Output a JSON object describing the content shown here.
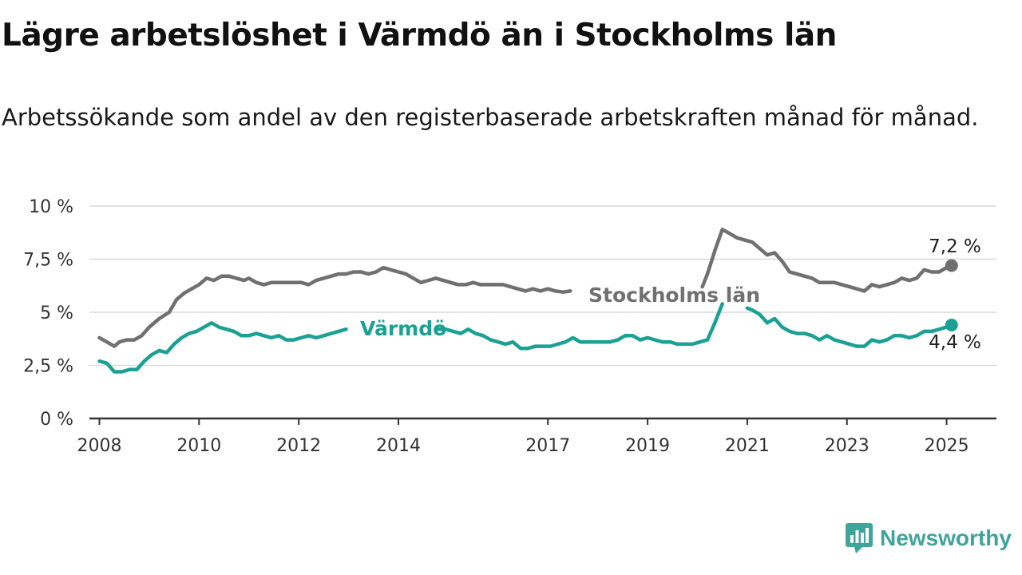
{
  "brand": {
    "name": "Newsworthy",
    "icon": "newsworthy-logo-icon"
  },
  "colors": {
    "stockholm": "#707070",
    "varmdo": "#1ba193",
    "grid": "#d9d9d9",
    "axis": "#333333",
    "brand": "#3fa49a"
  },
  "chart_data": {
    "type": "line",
    "title": "Lägre arbetslöshet i Värmdö än i Stockholms län",
    "subtitle": "Arbetssökande som andel av den registerbaserade arbetskraften månad för månad.",
    "ylim": [
      0,
      10
    ],
    "xlim": [
      2007.8,
      2026.0
    ],
    "y_ticks": [
      {
        "value": 0,
        "label": "0 %"
      },
      {
        "value": 2.5,
        "label": "2,5 %"
      },
      {
        "value": 5,
        "label": "5 %"
      },
      {
        "value": 7.5,
        "label": "7,5 %"
      },
      {
        "value": 10,
        "label": "10 %"
      }
    ],
    "x_ticks": [
      {
        "value": 2008,
        "label": "2008"
      },
      {
        "value": 2010,
        "label": "2010"
      },
      {
        "value": 2012,
        "label": "2012"
      },
      {
        "value": 2014,
        "label": "2014"
      },
      {
        "value": 2017,
        "label": "2017"
      },
      {
        "value": 2019,
        "label": "2019"
      },
      {
        "value": 2021,
        "label": "2021"
      },
      {
        "value": 2023,
        "label": "2023"
      },
      {
        "value": 2025,
        "label": "2025"
      }
    ],
    "grid": true,
    "series": [
      {
        "name": "Stockholms län",
        "end_label": "7,2 %",
        "points": [
          [
            2008.0,
            3.8
          ],
          [
            2008.15,
            3.6
          ],
          [
            2008.3,
            3.4
          ],
          [
            2008.4,
            3.6
          ],
          [
            2008.55,
            3.7
          ],
          [
            2008.7,
            3.7
          ],
          [
            2008.85,
            3.9
          ],
          [
            2009.0,
            4.3
          ],
          [
            2009.2,
            4.7
          ],
          [
            2009.4,
            5.0
          ],
          [
            2009.55,
            5.6
          ],
          [
            2009.7,
            5.9
          ],
          [
            2009.85,
            6.1
          ],
          [
            2010.0,
            6.3
          ],
          [
            2010.15,
            6.6
          ],
          [
            2010.3,
            6.5
          ],
          [
            2010.45,
            6.7
          ],
          [
            2010.6,
            6.7
          ],
          [
            2010.75,
            6.6
          ],
          [
            2010.9,
            6.5
          ],
          [
            2011.0,
            6.6
          ],
          [
            2011.15,
            6.4
          ],
          [
            2011.3,
            6.3
          ],
          [
            2011.45,
            6.4
          ],
          [
            2011.6,
            6.4
          ],
          [
            2011.75,
            6.4
          ],
          [
            2011.9,
            6.4
          ],
          [
            2012.05,
            6.4
          ],
          [
            2012.2,
            6.3
          ],
          [
            2012.35,
            6.5
          ],
          [
            2012.5,
            6.6
          ],
          [
            2012.65,
            6.7
          ],
          [
            2012.8,
            6.8
          ],
          [
            2012.95,
            6.8
          ],
          [
            2013.1,
            6.9
          ],
          [
            2013.25,
            6.9
          ],
          [
            2013.4,
            6.8
          ],
          [
            2013.55,
            6.9
          ],
          [
            2013.7,
            7.1
          ],
          [
            2013.85,
            7.0
          ],
          [
            2014.0,
            6.9
          ],
          [
            2014.15,
            6.8
          ],
          [
            2014.3,
            6.6
          ],
          [
            2014.45,
            6.4
          ],
          [
            2014.6,
            6.5
          ],
          [
            2014.75,
            6.6
          ],
          [
            2014.9,
            6.5
          ],
          [
            2015.05,
            6.4
          ],
          [
            2015.2,
            6.3
          ],
          [
            2015.35,
            6.3
          ],
          [
            2015.5,
            6.4
          ],
          [
            2015.65,
            6.3
          ],
          [
            2015.8,
            6.3
          ],
          [
            2015.95,
            6.3
          ],
          [
            2016.1,
            6.3
          ],
          [
            2016.25,
            6.2
          ],
          [
            2016.4,
            6.1
          ],
          [
            2016.55,
            6.0
          ],
          [
            2016.7,
            6.1
          ],
          [
            2016.85,
            6.0
          ],
          [
            2017.0,
            6.1
          ],
          [
            2017.15,
            6.0
          ],
          [
            2017.3,
            5.95
          ],
          [
            2017.45,
            6.0
          ],
          null,
          [
            2020.1,
            6.2
          ],
          [
            2020.2,
            6.8
          ],
          [
            2020.35,
            7.9
          ],
          [
            2020.5,
            8.9
          ],
          [
            2020.65,
            8.7
          ],
          [
            2020.8,
            8.5
          ],
          [
            2020.95,
            8.4
          ],
          [
            2021.1,
            8.3
          ],
          [
            2021.25,
            8.0
          ],
          [
            2021.4,
            7.7
          ],
          [
            2021.55,
            7.8
          ],
          [
            2021.7,
            7.4
          ],
          [
            2021.85,
            6.9
          ],
          [
            2022.0,
            6.8
          ],
          [
            2022.15,
            6.7
          ],
          [
            2022.3,
            6.6
          ],
          [
            2022.45,
            6.4
          ],
          [
            2022.6,
            6.4
          ],
          [
            2022.75,
            6.4
          ],
          [
            2022.9,
            6.3
          ],
          [
            2023.05,
            6.2
          ],
          [
            2023.2,
            6.1
          ],
          [
            2023.35,
            6.0
          ],
          [
            2023.5,
            6.3
          ],
          [
            2023.65,
            6.2
          ],
          [
            2023.8,
            6.3
          ],
          [
            2023.95,
            6.4
          ],
          [
            2024.1,
            6.6
          ],
          [
            2024.25,
            6.5
          ],
          [
            2024.4,
            6.6
          ],
          [
            2024.55,
            7.0
          ],
          [
            2024.7,
            6.9
          ],
          [
            2024.85,
            6.9
          ],
          [
            2025.0,
            7.1
          ],
          [
            2025.1,
            7.2
          ]
        ]
      },
      {
        "name": "Värmdö",
        "end_label": "4,4 %",
        "points": [
          [
            2008.0,
            2.7
          ],
          [
            2008.15,
            2.6
          ],
          [
            2008.3,
            2.2
          ],
          [
            2008.45,
            2.2
          ],
          [
            2008.6,
            2.3
          ],
          [
            2008.75,
            2.3
          ],
          [
            2008.9,
            2.7
          ],
          [
            2009.05,
            3.0
          ],
          [
            2009.2,
            3.2
          ],
          [
            2009.35,
            3.1
          ],
          [
            2009.5,
            3.5
          ],
          [
            2009.65,
            3.8
          ],
          [
            2009.8,
            4.0
          ],
          [
            2009.95,
            4.1
          ],
          [
            2010.1,
            4.3
          ],
          [
            2010.25,
            4.5
          ],
          [
            2010.4,
            4.3
          ],
          [
            2010.55,
            4.2
          ],
          [
            2010.7,
            4.1
          ],
          [
            2010.85,
            3.9
          ],
          [
            2011.0,
            3.9
          ],
          [
            2011.15,
            4.0
          ],
          [
            2011.3,
            3.9
          ],
          [
            2011.45,
            3.8
          ],
          [
            2011.6,
            3.9
          ],
          [
            2011.75,
            3.7
          ],
          [
            2011.9,
            3.7
          ],
          [
            2012.05,
            3.8
          ],
          [
            2012.2,
            3.9
          ],
          [
            2012.35,
            3.8
          ],
          [
            2012.5,
            3.9
          ],
          [
            2012.65,
            4.0
          ],
          [
            2012.8,
            4.1
          ],
          [
            2012.95,
            4.2
          ],
          null,
          [
            2014.8,
            4.2
          ],
          [
            2014.95,
            4.2
          ],
          [
            2015.1,
            4.1
          ],
          [
            2015.25,
            4.0
          ],
          [
            2015.4,
            4.2
          ],
          [
            2015.55,
            4.0
          ],
          [
            2015.7,
            3.9
          ],
          [
            2015.85,
            3.7
          ],
          [
            2016.0,
            3.6
          ],
          [
            2016.15,
            3.5
          ],
          [
            2016.3,
            3.6
          ],
          [
            2016.45,
            3.3
          ],
          [
            2016.6,
            3.3
          ],
          [
            2016.75,
            3.4
          ],
          [
            2016.9,
            3.4
          ],
          [
            2017.05,
            3.4
          ],
          [
            2017.2,
            3.5
          ],
          [
            2017.35,
            3.6
          ],
          [
            2017.5,
            3.8
          ],
          [
            2017.65,
            3.6
          ],
          [
            2017.8,
            3.6
          ],
          [
            2017.95,
            3.6
          ],
          [
            2018.1,
            3.6
          ],
          [
            2018.25,
            3.6
          ],
          [
            2018.4,
            3.7
          ],
          [
            2018.55,
            3.9
          ],
          [
            2018.7,
            3.9
          ],
          [
            2018.85,
            3.7
          ],
          [
            2019.0,
            3.8
          ],
          [
            2019.15,
            3.7
          ],
          [
            2019.3,
            3.6
          ],
          [
            2019.45,
            3.6
          ],
          [
            2019.6,
            3.5
          ],
          [
            2019.75,
            3.5
          ],
          [
            2019.9,
            3.5
          ],
          [
            2020.05,
            3.6
          ],
          [
            2020.2,
            3.7
          ],
          [
            2020.35,
            4.5
          ],
          [
            2020.5,
            5.4
          ],
          null,
          [
            2021.0,
            5.2
          ],
          [
            2021.1,
            5.1
          ],
          [
            2021.25,
            4.9
          ],
          [
            2021.4,
            4.5
          ],
          [
            2021.55,
            4.7
          ],
          [
            2021.7,
            4.3
          ],
          [
            2021.85,
            4.1
          ],
          [
            2022.0,
            4.0
          ],
          [
            2022.15,
            4.0
          ],
          [
            2022.3,
            3.9
          ],
          [
            2022.45,
            3.7
          ],
          [
            2022.6,
            3.9
          ],
          [
            2022.75,
            3.7
          ],
          [
            2022.9,
            3.6
          ],
          [
            2023.05,
            3.5
          ],
          [
            2023.2,
            3.4
          ],
          [
            2023.35,
            3.4
          ],
          [
            2023.5,
            3.7
          ],
          [
            2023.65,
            3.6
          ],
          [
            2023.8,
            3.7
          ],
          [
            2023.95,
            3.9
          ],
          [
            2024.1,
            3.9
          ],
          [
            2024.25,
            3.8
          ],
          [
            2024.4,
            3.9
          ],
          [
            2024.55,
            4.1
          ],
          [
            2024.7,
            4.1
          ],
          [
            2024.85,
            4.2
          ],
          [
            2025.0,
            4.3
          ],
          [
            2025.1,
            4.4
          ]
        ]
      }
    ]
  }
}
